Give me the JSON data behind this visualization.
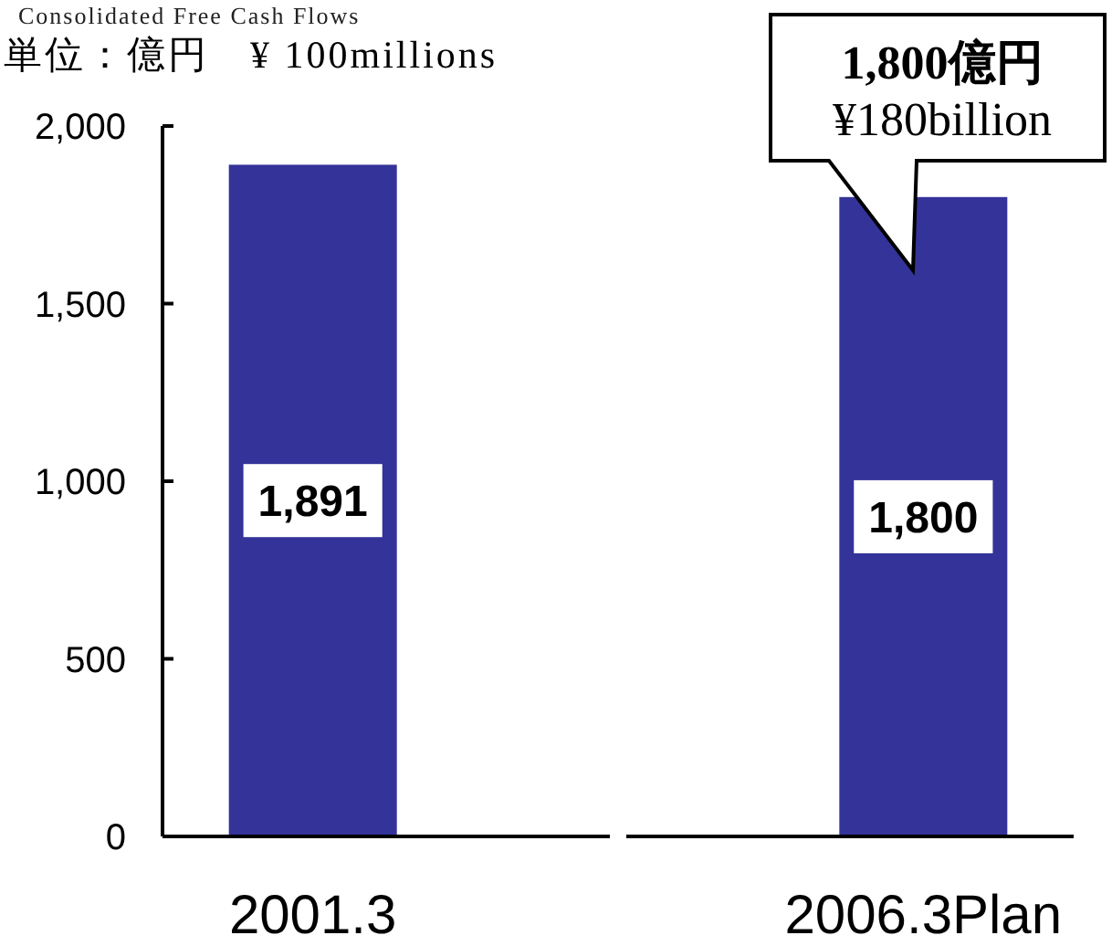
{
  "chart_data": {
    "type": "bar",
    "title": "Consolidated Free Cash Flows",
    "ylabel": "単位：億円　¥ 100millions",
    "categories": [
      "2001.3",
      "2006.3Plan"
    ],
    "values": [
      1891,
      1800
    ],
    "color": "#333399",
    "ylim": [
      0,
      2000
    ],
    "yticks": [
      0,
      500,
      {
        "value": 1000,
        "label": "1,000"
      },
      {
        "value": 1500,
        "label": "1,500"
      },
      {
        "value": 2000,
        "label": "2,000"
      }
    ],
    "value_labels": [
      "1,891",
      "1,800"
    ],
    "annotations": [
      "1,800億円\n¥180billion"
    ]
  }
}
